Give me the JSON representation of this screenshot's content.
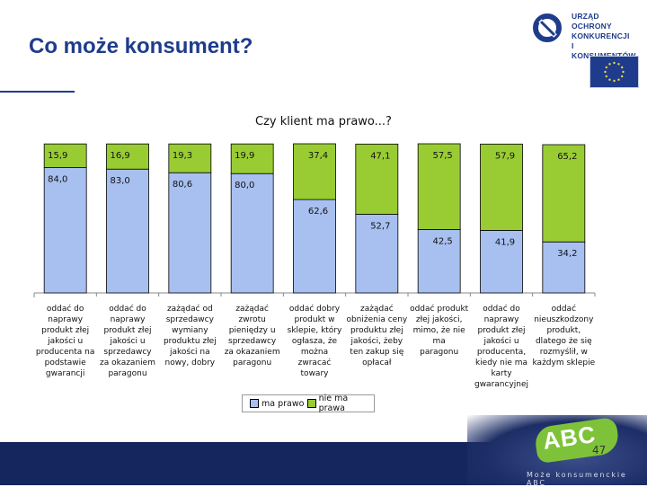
{
  "header": {
    "title": "Co może konsument?",
    "logo_lines": [
      "URZĄD OCHRONY",
      "KONKURENCJI",
      "I KONSUMENTÓW"
    ]
  },
  "chart_data": {
    "type": "bar",
    "stacked": true,
    "title": "Czy klient ma prawo...?",
    "ylim": [
      0,
      100
    ],
    "categories": [
      "oddać do naprawy produkt złej jakości u producenta na podstawie gwarancji",
      "oddać do naprawy produkt złej jakości u sprzedawcy za okazaniem paragonu",
      "zażądać od sprzedawcy wymiany produktu złej jakości na nowy, dobry",
      "zażądać zwrotu pieniędzy u sprzedawcy za okazaniem paragonu",
      "oddać dobry produkt w sklepie, który ogłasza, że można zwracać towary",
      "zażądać obniżenia ceny produktu złej jakości, żeby ten zakup się opłacał",
      "oddać produkt złej jakości, mimo, że nie ma paragonu",
      "oddać do naprawy produkt złej jakości u producenta, kiedy nie ma karty gwarancyjnej",
      "oddać nieuszkodzony produkt, dlatego że się rozmyślił, w każdym sklepie"
    ],
    "category_lines": [
      [
        "oddać do",
        "naprawy",
        "produkt złej",
        "jakości u",
        "producenta na",
        "podstawie",
        "gwarancji"
      ],
      [
        "oddać do",
        "naprawy",
        "produkt złej",
        "jakości u",
        "sprzedawcy",
        "za okazaniem",
        "paragonu"
      ],
      [
        "zażądać od",
        "sprzedawcy",
        "wymiany",
        "produktu złej",
        "jakości na",
        "nowy, dobry"
      ],
      [
        "zażądać",
        "zwrotu",
        "pieniędzy u",
        "sprzedawcy",
        "za okazaniem",
        "paragonu"
      ],
      [
        "oddać dobry",
        "produkt w",
        "sklepie, który",
        "ogłasza, że",
        "można",
        "zwracać",
        "towary"
      ],
      [
        "zażądać",
        "obniżenia ceny",
        "produktu złej",
        "jakości, żeby",
        "ten zakup się",
        "opłacał"
      ],
      [
        "oddać produkt",
        "złej jakości,",
        "mimo, że nie ma",
        "paragonu"
      ],
      [
        "oddać do",
        "naprawy",
        "produkt złej",
        "jakości u",
        "producenta,",
        "kiedy nie ma",
        "karty",
        "gwarancyjnej"
      ],
      [
        "oddać",
        "nieuszkodzony",
        "produkt,",
        "dlatego że się",
        "rozmyślił, w",
        "każdym sklepie"
      ]
    ],
    "series": [
      {
        "name": "ma prawo",
        "color": "#a8c0f0",
        "values": [
          84.0,
          83.0,
          80.6,
          80.0,
          62.6,
          52.7,
          42.5,
          41.9,
          34.2
        ],
        "labels": [
          "84,0",
          "83,0",
          "80,6",
          "80,0",
          "62,6",
          "52,7",
          "42,5",
          "41,9",
          "34,2"
        ]
      },
      {
        "name": "nie ma prawa",
        "color": "#99cc33",
        "values": [
          15.9,
          16.9,
          19.3,
          19.9,
          37.4,
          47.1,
          57.5,
          57.9,
          65.2
        ],
        "labels": [
          "15,9",
          "16,9",
          "19,3",
          "19,9",
          "37,4",
          "47,1",
          "57,5",
          "57,9",
          "65,2"
        ]
      }
    ],
    "legend": [
      "ma prawo",
      "nie ma prawa"
    ],
    "legend_position": "bottom"
  },
  "footer": {
    "page_number": "47",
    "caption": "Może konsumenckie ABC",
    "badge_text": "ABC"
  },
  "colors": {
    "title": "#1f3c8c",
    "footer": "#15265e",
    "ma_prawo": "#a8c0f0",
    "nie_ma_prawa": "#99cc33"
  }
}
